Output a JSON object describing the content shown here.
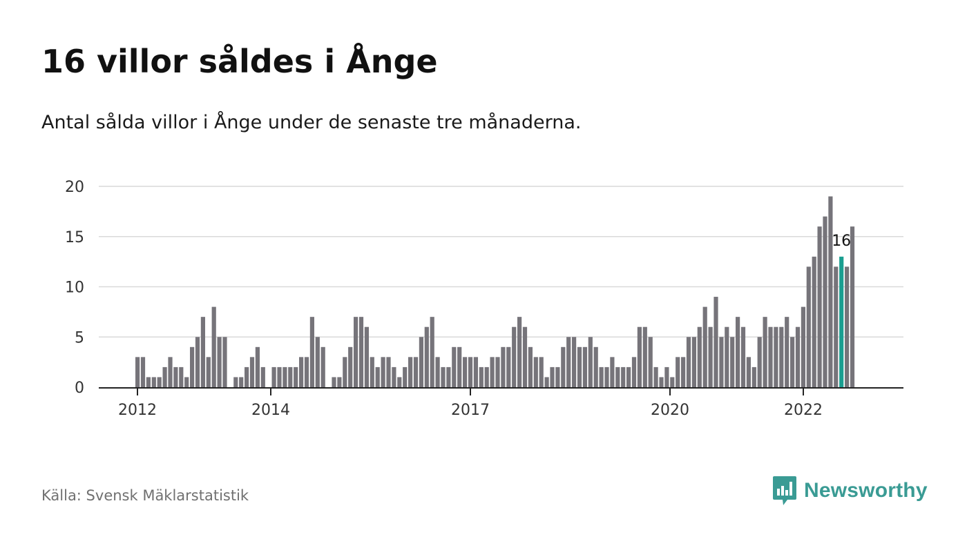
{
  "header": {
    "title": "16 villor såldes i Ånge",
    "subtitle": "Antal sålda villor i Ånge under de senaste tre månaderna."
  },
  "footer": {
    "source": "Källa: Svensk Mäklarstatistik",
    "brand": "Newsworthy",
    "brand_icon": "bar-chart-speech-bubble-icon"
  },
  "colors": {
    "bar": "#76747a",
    "highlight": "#1a9e90",
    "grid": "#d9d9d9",
    "axis": "#222222",
    "brand": "#3a9b94"
  },
  "chart_data": {
    "type": "bar",
    "ylim": [
      0,
      20
    ],
    "yticks": [
      0,
      5,
      10,
      15,
      20
    ],
    "grid": true,
    "x_axis_labels": [
      "2012",
      "2014",
      "2017",
      "2020",
      "2022"
    ],
    "highlight_label": "16",
    "values": [
      3,
      3,
      1,
      1,
      1,
      2,
      3,
      2,
      2,
      1,
      4,
      5,
      7,
      3,
      8,
      5,
      5,
      0,
      1,
      1,
      2,
      3,
      4,
      2,
      0,
      2,
      2,
      2,
      2,
      2,
      3,
      3,
      7,
      5,
      4,
      0,
      1,
      1,
      3,
      4,
      7,
      7,
      6,
      3,
      2,
      3,
      3,
      2,
      1,
      2,
      3,
      3,
      5,
      6,
      7,
      3,
      2,
      2,
      4,
      4,
      3,
      3,
      3,
      2,
      2,
      3,
      3,
      4,
      4,
      6,
      7,
      6,
      4,
      3,
      3,
      1,
      2,
      2,
      4,
      5,
      5,
      4,
      4,
      5,
      4,
      2,
      2,
      3,
      2,
      2,
      2,
      3,
      6,
      6,
      5,
      2,
      1,
      2,
      1,
      3,
      3,
      5,
      5,
      6,
      8,
      6,
      9,
      5,
      6,
      5,
      7,
      6,
      3,
      2,
      5,
      7,
      6,
      6,
      6,
      7,
      5,
      6,
      8,
      12,
      13,
      16,
      17,
      19,
      12,
      13,
      12,
      16
    ],
    "highlight_index": 129
  }
}
